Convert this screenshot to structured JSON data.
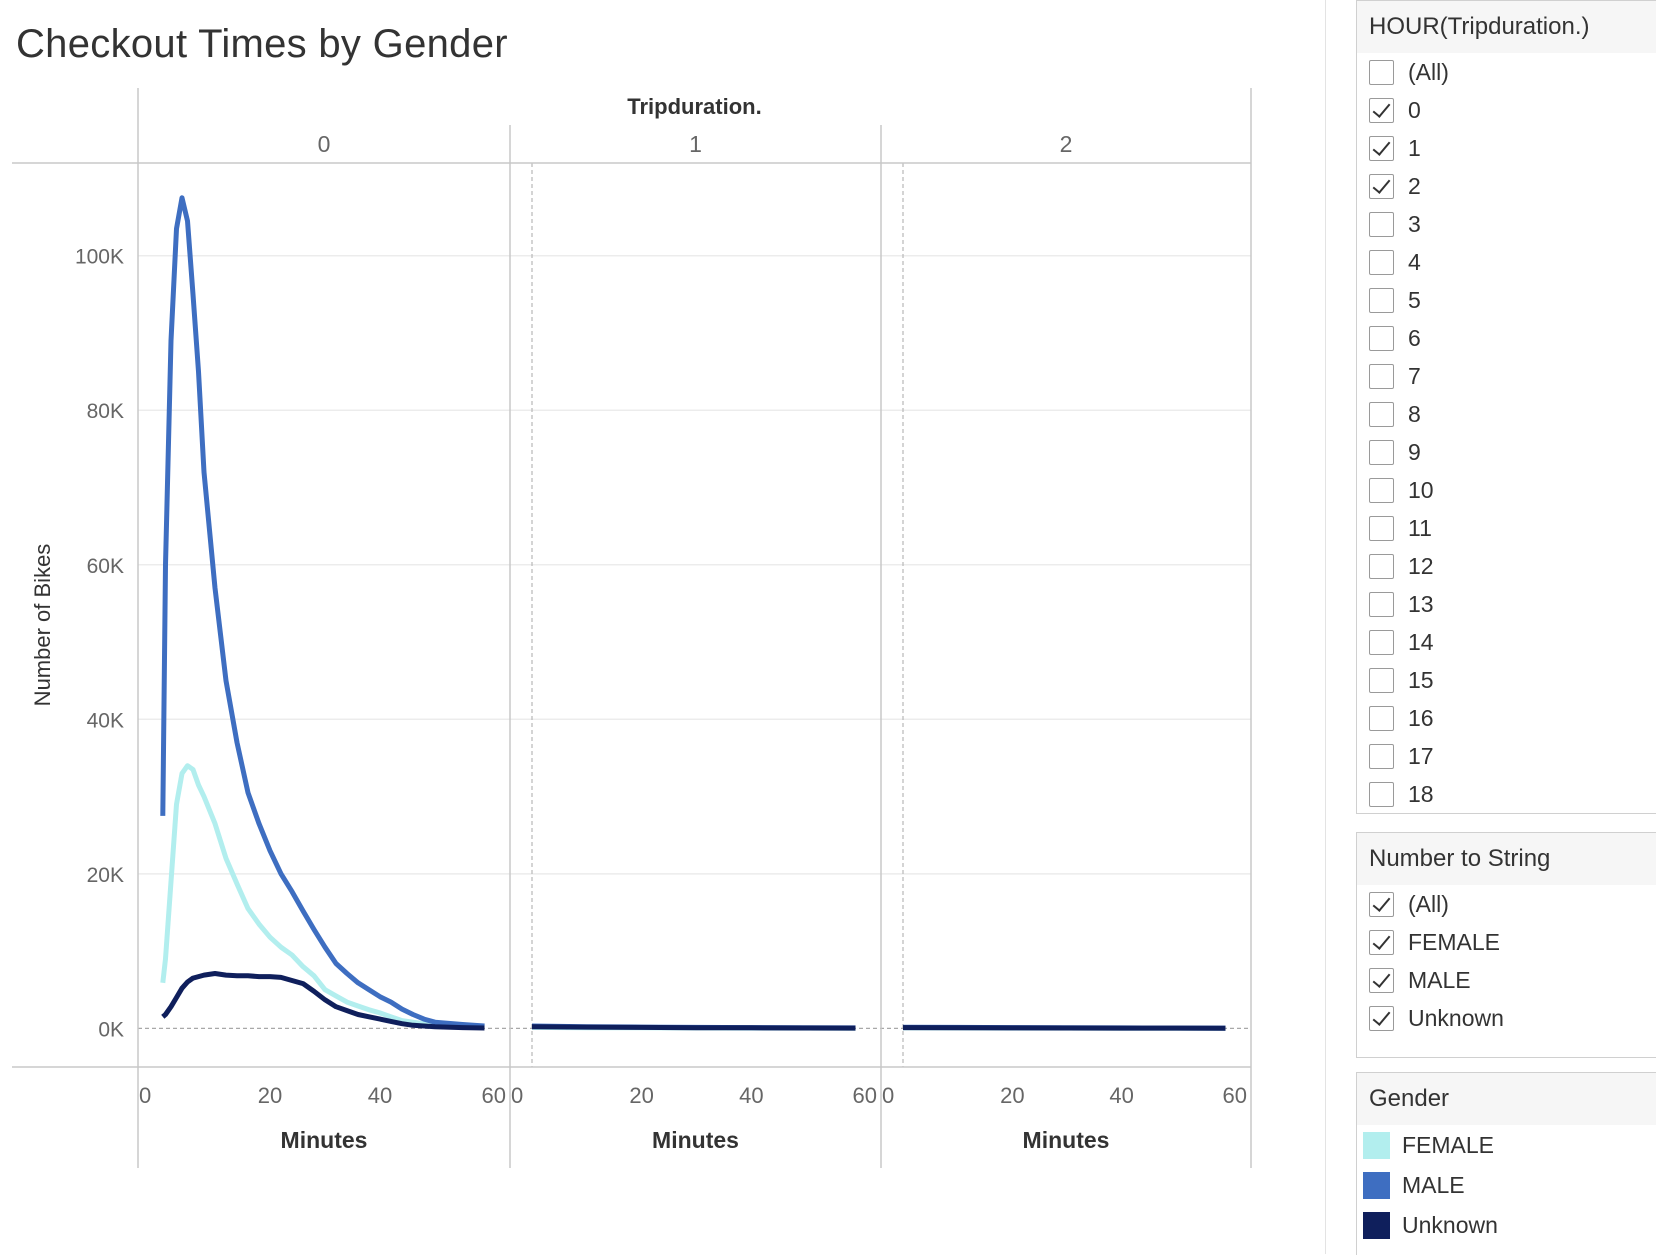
{
  "chart_data": {
    "type": "line",
    "title": "Checkout Times by Gender",
    "column_header": "Tripduration.",
    "ylabel": "Number of Bikes",
    "xlabel": "Minutes",
    "ylim": [
      -5000,
      112000
    ],
    "yticks": [
      0,
      20000,
      40000,
      60000,
      80000,
      100000
    ],
    "ytick_labels": [
      "0K",
      "20K",
      "40K",
      "60K",
      "80K",
      "100K"
    ],
    "xlim": [
      0,
      60
    ],
    "xticks": [
      0,
      20,
      40,
      60
    ],
    "xtick_labels": [
      "0",
      "20",
      "40",
      "60"
    ],
    "grid": true,
    "panels": [
      {
        "label": "0",
        "series": [
          {
            "name": "FEMALE",
            "color": "#b2eeee",
            "x": [
              0.5,
              1,
              2,
              3,
              4,
              5,
              6,
              7,
              8,
              10,
              12,
              14,
              16,
              18,
              20,
              22,
              24,
              26,
              28,
              30,
              32,
              34,
              36,
              38,
              40,
              42,
              44,
              46,
              48,
              50,
              55,
              59
            ],
            "y": [
              5900,
              9000,
              19000,
              29000,
              33000,
              34000,
              33500,
              31500,
              30000,
              26500,
              22000,
              18700,
              15500,
              13500,
              11800,
              10500,
              9500,
              8000,
              6800,
              5000,
              4200,
              3400,
              2900,
              2400,
              2000,
              1500,
              1000,
              800,
              600,
              400,
              300,
              200
            ]
          },
          {
            "name": "MALE",
            "color": "#3e6ec1",
            "x": [
              0.5,
              1,
              2,
              3,
              4,
              5,
              6,
              7,
              8,
              10,
              12,
              14,
              16,
              18,
              20,
              22,
              24,
              26,
              28,
              30,
              32,
              34,
              36,
              38,
              40,
              42,
              44,
              46,
              48,
              50,
              55,
              59
            ],
            "y": [
              27500,
              60000,
              89000,
              103500,
              107500,
              104500,
              95000,
              85000,
              72000,
              57000,
              45000,
              37000,
              30500,
              26500,
              23000,
              20000,
              17700,
              15200,
              12800,
              10500,
              8400,
              7100,
              5900,
              5000,
              4100,
              3400,
              2500,
              1800,
              1200,
              800,
              500,
              300
            ]
          },
          {
            "name": "Unknown",
            "color": "#0f1f5c",
            "x": [
              0.5,
              1,
              2,
              3,
              4,
              5,
              6,
              7,
              8,
              10,
              12,
              14,
              16,
              18,
              20,
              22,
              24,
              26,
              28,
              30,
              32,
              34,
              36,
              38,
              40,
              42,
              44,
              46,
              48,
              50,
              55,
              59
            ],
            "y": [
              1500,
              1800,
              2800,
              4000,
              5200,
              6000,
              6500,
              6700,
              6900,
              7100,
              6900,
              6800,
              6800,
              6700,
              6700,
              6600,
              6200,
              5800,
              4800,
              3700,
              2800,
              2300,
              1800,
              1500,
              1200,
              900,
              600,
              400,
              300,
              200,
              100,
              50
            ]
          }
        ]
      },
      {
        "label": "1",
        "series": [
          {
            "name": "FEMALE",
            "color": "#b2eeee",
            "x": [
              0,
              10,
              20,
              30,
              40,
              50,
              59
            ],
            "y": [
              120,
              90,
              70,
              50,
              40,
              30,
              20
            ]
          },
          {
            "name": "MALE",
            "color": "#3e6ec1",
            "x": [
              0,
              10,
              20,
              30,
              40,
              50,
              59
            ],
            "y": [
              300,
              220,
              170,
              130,
              100,
              80,
              60
            ]
          },
          {
            "name": "Unknown",
            "color": "#0f1f5c",
            "x": [
              0,
              10,
              20,
              30,
              40,
              50,
              59
            ],
            "y": [
              200,
              160,
              120,
              90,
              70,
              50,
              40
            ]
          }
        ]
      },
      {
        "label": "2",
        "series": [
          {
            "name": "FEMALE",
            "color": "#b2eeee",
            "x": [
              0,
              10,
              20,
              30,
              40,
              50,
              59
            ],
            "y": [
              60,
              50,
              40,
              30,
              25,
              20,
              15
            ]
          },
          {
            "name": "MALE",
            "color": "#3e6ec1",
            "x": [
              0,
              10,
              20,
              30,
              40,
              50,
              59
            ],
            "y": [
              150,
              120,
              100,
              80,
              60,
              50,
              40
            ]
          },
          {
            "name": "Unknown",
            "color": "#0f1f5c",
            "x": [
              0,
              10,
              20,
              30,
              40,
              50,
              59
            ],
            "y": [
              100,
              80,
              60,
              50,
              40,
              30,
              25
            ]
          }
        ]
      }
    ]
  },
  "filters": {
    "hour": {
      "title": "HOUR(Tripduration.)",
      "items": [
        {
          "label": "(All)",
          "checked": false
        },
        {
          "label": "0",
          "checked": true
        },
        {
          "label": "1",
          "checked": true
        },
        {
          "label": "2",
          "checked": true
        },
        {
          "label": "3",
          "checked": false
        },
        {
          "label": "4",
          "checked": false
        },
        {
          "label": "5",
          "checked": false
        },
        {
          "label": "6",
          "checked": false
        },
        {
          "label": "7",
          "checked": false
        },
        {
          "label": "8",
          "checked": false
        },
        {
          "label": "9",
          "checked": false
        },
        {
          "label": "10",
          "checked": false
        },
        {
          "label": "11",
          "checked": false
        },
        {
          "label": "12",
          "checked": false
        },
        {
          "label": "13",
          "checked": false
        },
        {
          "label": "14",
          "checked": false
        },
        {
          "label": "15",
          "checked": false
        },
        {
          "label": "16",
          "checked": false
        },
        {
          "label": "17",
          "checked": false
        },
        {
          "label": "18",
          "checked": false
        }
      ]
    },
    "number_to_string": {
      "title": "Number to String",
      "items": [
        {
          "label": "(All)",
          "checked": true
        },
        {
          "label": "FEMALE",
          "checked": true
        },
        {
          "label": "MALE",
          "checked": true
        },
        {
          "label": "Unknown",
          "checked": true
        }
      ]
    }
  },
  "legend": {
    "title": "Gender",
    "items": [
      {
        "label": "FEMALE",
        "color": "#b2eeee"
      },
      {
        "label": "MALE",
        "color": "#3e6ec1"
      },
      {
        "label": "Unknown",
        "color": "#0f1f5c"
      }
    ]
  }
}
